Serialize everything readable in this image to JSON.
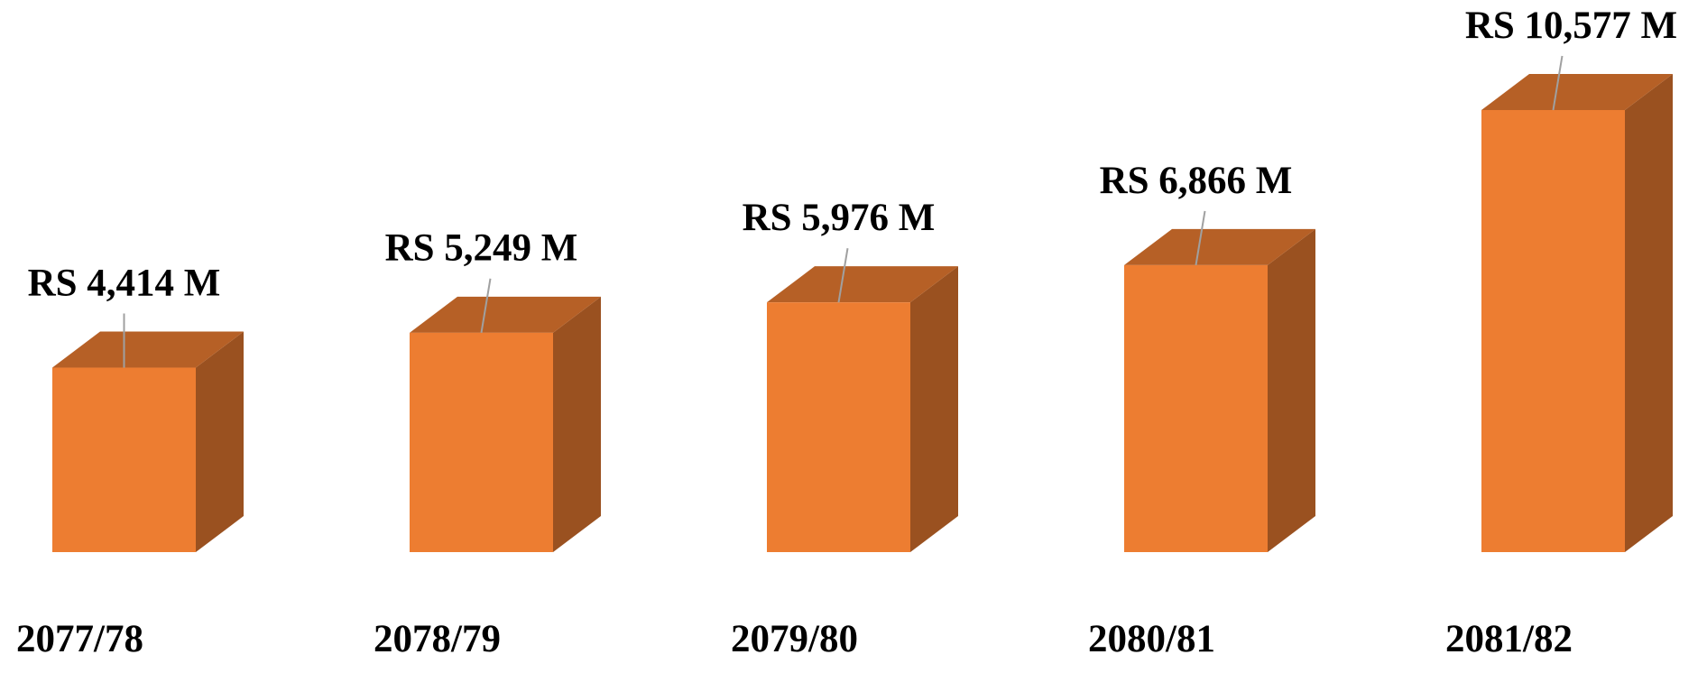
{
  "chart_data": {
    "type": "bar3d",
    "categories": [
      "2077/78",
      "2078/79",
      "2079/80",
      "2080/81",
      "2081/82"
    ],
    "values": [
      4414,
      5249,
      5976,
      6866,
      10577
    ],
    "value_labels": [
      "RS 4,414 M",
      "RS 5,249 M",
      "RS 5,976 M",
      "RS 6,866 M",
      "RS 10,577 M"
    ],
    "color": "#ed7d31"
  }
}
